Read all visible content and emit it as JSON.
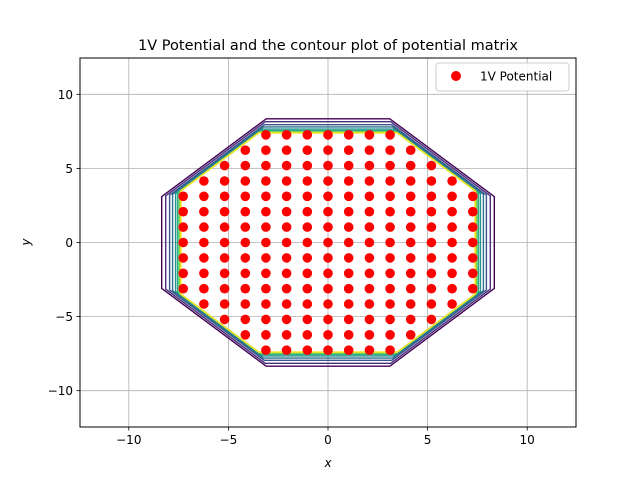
{
  "chart_data": {
    "type": "scatter",
    "title": "1V Potential and the contour plot of potential matrix",
    "xlabel": "x",
    "ylabel": "y",
    "xlim": [
      -12.45,
      12.45
    ],
    "ylim": [
      -12.45,
      12.45
    ],
    "xticks": [
      -10,
      -5,
      0,
      5,
      10
    ],
    "yticks": [
      -10,
      -5,
      0,
      5,
      10
    ],
    "xtick_labels": [
      "−10",
      "−5",
      "0",
      "5",
      "10"
    ],
    "ytick_labels": [
      "−10",
      "−5",
      "0",
      "5",
      "10"
    ],
    "grid": true,
    "legend": {
      "position": "upper-right",
      "entries": [
        {
          "label": "1V Potential",
          "color": "#ff0000",
          "marker": "circle"
        }
      ]
    },
    "series": [
      {
        "name": "1V Potential",
        "color": "#ff0000",
        "marker": "circle",
        "rows": [
          {
            "y": 7.27,
            "x": [
              -3.12,
              -2.08,
              -1.04,
              0,
              1.04,
              2.08,
              3.12
            ]
          },
          {
            "y": 6.23,
            "x": [
              -4.15,
              -3.12,
              -2.08,
              -1.04,
              0,
              1.04,
              2.08,
              3.12,
              4.15
            ]
          },
          {
            "y": 5.19,
            "x": [
              -5.19,
              -4.15,
              -3.12,
              -2.08,
              -1.04,
              0,
              1.04,
              2.08,
              3.12,
              4.15,
              5.19
            ]
          },
          {
            "y": 4.15,
            "x": [
              -6.23,
              -5.19,
              -4.15,
              -3.12,
              -2.08,
              -1.04,
              0,
              1.04,
              2.08,
              3.12,
              4.15,
              5.19,
              6.23
            ]
          },
          {
            "y": 3.12,
            "x": [
              -7.27,
              -6.23,
              -5.19,
              -4.15,
              -3.12,
              -2.08,
              -1.04,
              0,
              1.04,
              2.08,
              3.12,
              4.15,
              5.19,
              6.23,
              7.27
            ]
          },
          {
            "y": 2.08,
            "x": [
              -7.27,
              -6.23,
              -5.19,
              -4.15,
              -3.12,
              -2.08,
              -1.04,
              0,
              1.04,
              2.08,
              3.12,
              4.15,
              5.19,
              6.23,
              7.27
            ]
          },
          {
            "y": 1.04,
            "x": [
              -7.27,
              -6.23,
              -5.19,
              -4.15,
              -3.12,
              -2.08,
              -1.04,
              0,
              1.04,
              2.08,
              3.12,
              4.15,
              5.19,
              6.23,
              7.27
            ]
          },
          {
            "y": 0,
            "x": [
              -7.27,
              -6.23,
              -5.19,
              -4.15,
              -3.12,
              -2.08,
              -1.04,
              0,
              1.04,
              2.08,
              3.12,
              4.15,
              5.19,
              6.23,
              7.27
            ]
          },
          {
            "y": -1.04,
            "x": [
              -7.27,
              -6.23,
              -5.19,
              -4.15,
              -3.12,
              -2.08,
              -1.04,
              0,
              1.04,
              2.08,
              3.12,
              4.15,
              5.19,
              6.23,
              7.27
            ]
          },
          {
            "y": -2.08,
            "x": [
              -7.27,
              -6.23,
              -5.19,
              -4.15,
              -3.12,
              -2.08,
              -1.04,
              0,
              1.04,
              2.08,
              3.12,
              4.15,
              5.19,
              6.23,
              7.27
            ]
          },
          {
            "y": -3.12,
            "x": [
              -7.27,
              -6.23,
              -5.19,
              -4.15,
              -3.12,
              -2.08,
              -1.04,
              0,
              1.04,
              2.08,
              3.12,
              4.15,
              5.19,
              6.23,
              7.27
            ]
          },
          {
            "y": -4.15,
            "x": [
              -6.23,
              -5.19,
              -4.15,
              -3.12,
              -2.08,
              -1.04,
              0,
              1.04,
              2.08,
              3.12,
              4.15,
              5.19,
              6.23
            ]
          },
          {
            "y": -5.19,
            "x": [
              -5.19,
              -4.15,
              -3.12,
              -2.08,
              -1.04,
              0,
              1.04,
              2.08,
              3.12,
              4.15,
              5.19
            ]
          },
          {
            "y": -6.23,
            "x": [
              -4.15,
              -3.12,
              -2.08,
              -1.04,
              0,
              1.04,
              2.08,
              3.12,
              4.15
            ]
          },
          {
            "y": -7.27,
            "x": [
              -3.12,
              -2.08,
              -1.04,
              0,
              1.04,
              2.08,
              3.12
            ]
          }
        ]
      }
    ],
    "contour": {
      "shape": "octagon",
      "levels": [
        {
          "color": "#440154",
          "flat": 8.35,
          "corner": 3.1
        },
        {
          "color": "#472d7b",
          "flat": 8.15,
          "corner": 3.15
        },
        {
          "color": "#3b528b",
          "flat": 7.95,
          "corner": 3.2
        },
        {
          "color": "#2c728e",
          "flat": 7.8,
          "corner": 3.25
        },
        {
          "color": "#21918c",
          "flat": 7.65,
          "corner": 3.3
        },
        {
          "color": "#28ae80",
          "flat": 7.55,
          "corner": 3.35
        },
        {
          "color": "#5ec962",
          "flat": 7.47,
          "corner": 3.4
        },
        {
          "color": "#addc30",
          "flat": 7.42,
          "corner": 3.45
        },
        {
          "color": "#fde725",
          "flat": 7.38,
          "corner": 3.5
        }
      ]
    }
  }
}
